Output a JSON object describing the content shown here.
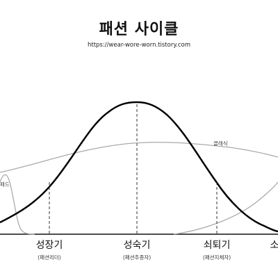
{
  "header": {
    "title": "패션 사이클",
    "url": "https://wear-wore-worn.tistory.com"
  },
  "stages": [
    {
      "name": "성장기",
      "sub": "(패션리더)"
    },
    {
      "name": "성숙기",
      "sub": "(패션추종자)"
    },
    {
      "name": "쇠퇴기",
      "sub": "(패션지체자)"
    },
    {
      "name": "소",
      "sub": ""
    }
  ],
  "curves": {
    "classic_label": "클래식",
    "fad_label": "패드"
  },
  "colors": {
    "main_curve": "#000000",
    "secondary_curve": "#aaaaaa",
    "axis": "#111111",
    "dashed": "#333333"
  }
}
